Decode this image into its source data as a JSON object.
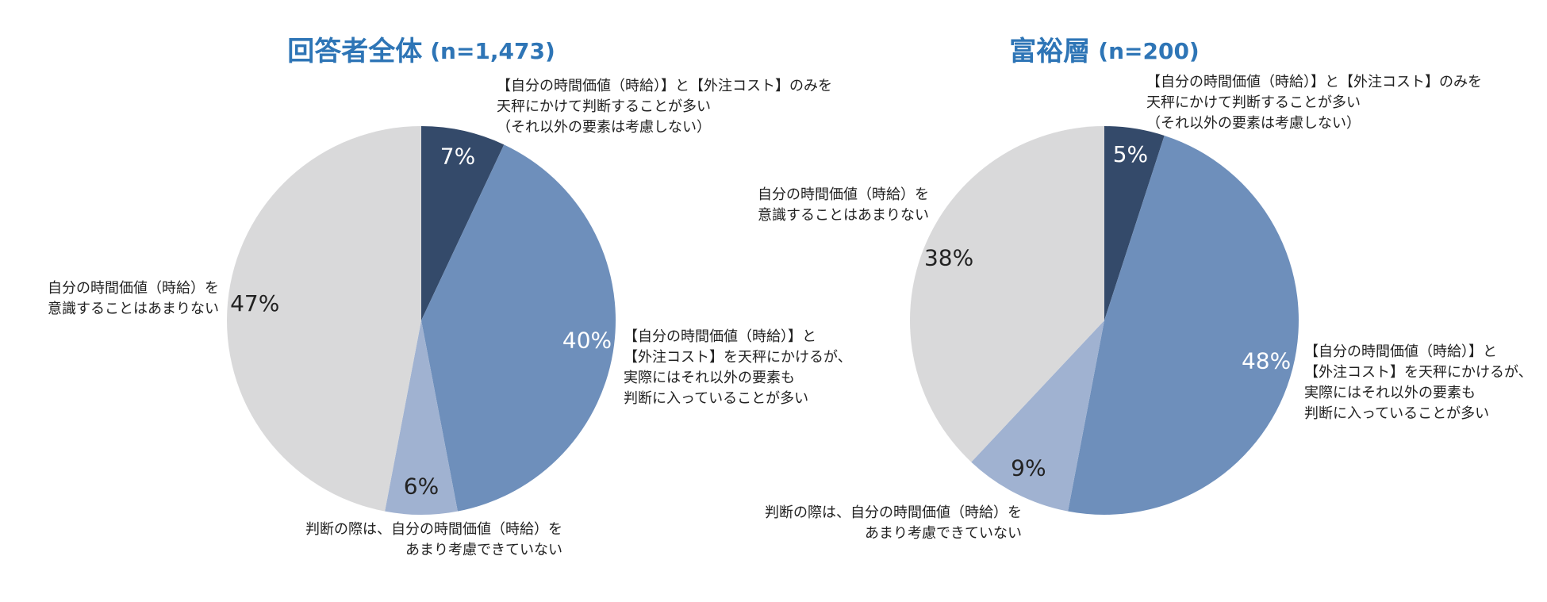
{
  "chart_data": [
    {
      "type": "pie",
      "title": "回答者全体",
      "sample": "(n=1,473)",
      "categories": [
        "【自分の時間価値（時給）】と【外注コスト】のみを\n天秤にかけて判断することが多い\n（それ以外の要素は考慮しない）",
        "【自分の時間価値（時給）】と\n【外注コスト】を天秤にかけるが、\n実際にはそれ以外の要素も\n判断に入っていることが多い",
        "判断の際は、自分の時間価値（時給）を\nあまり考慮できていない",
        "自分の時間価値（時給）を\n意識することはあまりない"
      ],
      "values": [
        7,
        40,
        6,
        47
      ],
      "value_labels": [
        "7%",
        "40%",
        "6%",
        "47%"
      ],
      "colors": [
        "#344a6a",
        "#6e8fbb",
        "#a0b2d1",
        "#d9d9da"
      ]
    },
    {
      "type": "pie",
      "title": "富裕層",
      "sample": "(n=200)",
      "categories": [
        "【自分の時間価値（時給）】と【外注コスト】のみを\n天秤にかけて判断することが多い\n（それ以外の要素は考慮しない）",
        "【自分の時間価値（時給）】と\n【外注コスト】を天秤にかけるが、\n実際にはそれ以外の要素も\n判断に入っていることが多い",
        "判断の際は、自分の時間価値（時給）を\nあまり考慮できていない",
        "自分の時間価値（時給）を\n意識することはあまりない"
      ],
      "values": [
        5,
        48,
        9,
        38
      ],
      "value_labels": [
        "5%",
        "48%",
        "9%",
        "38%"
      ],
      "colors": [
        "#344a6a",
        "#6e8fbb",
        "#a0b2d1",
        "#d9d9da"
      ]
    }
  ]
}
